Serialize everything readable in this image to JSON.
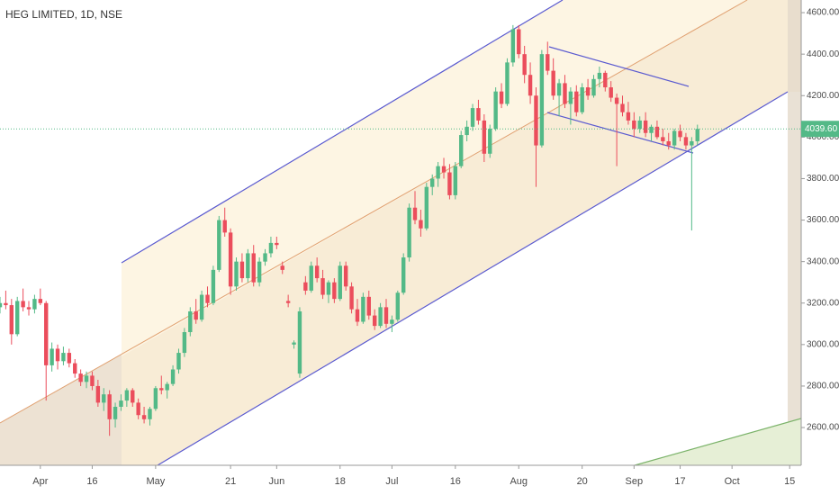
{
  "chart_data": {
    "type": "candlestick",
    "title": "HEG LIMITED, 1D, NSE",
    "open": [
      3180,
      3200,
      3190,
      3050,
      3210,
      3180,
      3170,
      3220,
      3200,
      2900,
      2980,
      2920,
      2960,
      2910,
      2860,
      2820,
      2850,
      2800,
      2720,
      2760,
      2640,
      2700,
      2730,
      2780,
      2720,
      2660,
      2640,
      2690,
      2790,
      2780,
      2810,
      2880,
      2960,
      3060,
      3160,
      3120,
      3240,
      3200,
      3360,
      3600,
      3540,
      3280,
      3400,
      3320,
      3440,
      3300,
      3400,
      3440,
      3490,
      3380,
      3210,
      3000,
      2860,
      3300,
      3260,
      3380,
      3320,
      3240,
      3300,
      3220,
      3380,
      3280,
      3170,
      3110,
      3230,
      3140,
      3090,
      3180,
      3100,
      3120,
      3250,
      3420,
      3660,
      3600,
      3560,
      3760,
      3800,
      3860,
      3830,
      3720,
      3860,
      4010,
      4050,
      4140,
      4080,
      3920,
      4040,
      4220,
      4160,
      4360,
      4520,
      4400,
      4300,
      4200,
      3960,
      4400,
      4320,
      4200,
      4260,
      4160,
      4220,
      4120,
      4240,
      4200,
      4280,
      4310,
      4240,
      4190,
      4160,
      4120,
      4080,
      4040,
      4080,
      4020,
      4050,
      4000,
      3980,
      3960,
      4030,
      4000,
      3960,
      3980
    ],
    "high": [
      3230,
      3260,
      3220,
      3230,
      3270,
      3210,
      3240,
      3270,
      3210,
      3010,
      3000,
      2990,
      2980,
      2930,
      2880,
      2870,
      2870,
      2830,
      2790,
      2780,
      2720,
      2760,
      2790,
      2790,
      2740,
      2700,
      2700,
      2800,
      2850,
      2820,
      2900,
      2980,
      3080,
      3180,
      3220,
      3260,
      3280,
      3380,
      3620,
      3660,
      3560,
      3420,
      3440,
      3460,
      3480,
      3420,
      3460,
      3520,
      3520,
      3400,
      3240,
      3020,
      3180,
      3330,
      3400,
      3420,
      3360,
      3310,
      3320,
      3400,
      3400,
      3300,
      3220,
      3250,
      3260,
      3170,
      3200,
      3220,
      3140,
      3260,
      3440,
      3680,
      3740,
      3650,
      3780,
      3820,
      3880,
      3900,
      3870,
      3880,
      4030,
      4080,
      4160,
      4180,
      4110,
      4060,
      4240,
      4260,
      4380,
      4540,
      4540,
      4440,
      4360,
      4240,
      4420,
      4460,
      4380,
      4280,
      4300,
      4240,
      4250,
      4260,
      4280,
      4300,
      4340,
      4320,
      4270,
      4210,
      4200,
      4170,
      4120,
      4100,
      4120,
      4060,
      4080,
      4040,
      4020,
      4040,
      4060,
      4020,
      4000,
      4060
    ],
    "low": [
      3150,
      3170,
      3000,
      3040,
      3160,
      3140,
      3150,
      3190,
      2730,
      2870,
      2880,
      2900,
      2890,
      2840,
      2800,
      2790,
      2780,
      2700,
      2680,
      2560,
      2600,
      2680,
      2700,
      2700,
      2640,
      2620,
      2610,
      2680,
      2760,
      2740,
      2800,
      2860,
      2940,
      3040,
      3100,
      3110,
      3180,
      3190,
      3350,
      3520,
      3240,
      3260,
      3300,
      3300,
      3280,
      3280,
      3380,
      3420,
      3460,
      3340,
      3180,
      2980,
      2840,
      3240,
      3250,
      3300,
      3220,
      3200,
      3200,
      3210,
      3260,
      3150,
      3090,
      3100,
      3120,
      3070,
      3080,
      3080,
      3060,
      3110,
      3240,
      3400,
      3580,
      3520,
      3550,
      3720,
      3760,
      3800,
      3700,
      3700,
      3850,
      3980,
      4030,
      4060,
      3880,
      3900,
      4030,
      4140,
      4150,
      4340,
      4380,
      4260,
      4160,
      3760,
      3950,
      4300,
      4180,
      4100,
      4140,
      4060,
      4100,
      4110,
      4180,
      4190,
      4240,
      4220,
      4170,
      3860,
      4100,
      4060,
      4000,
      4020,
      4000,
      3980,
      3990,
      3960,
      3940,
      3940,
      3980,
      3940,
      3550,
      3960
    ],
    "close": [
      3200,
      3190,
      3050,
      3210,
      3180,
      3170,
      3220,
      3200,
      2900,
      2980,
      2920,
      2960,
      2910,
      2860,
      2820,
      2850,
      2800,
      2720,
      2760,
      2640,
      2700,
      2730,
      2780,
      2720,
      2660,
      2640,
      2690,
      2790,
      2780,
      2810,
      2880,
      2960,
      3060,
      3160,
      3120,
      3240,
      3200,
      3360,
      3600,
      3540,
      3280,
      3400,
      3320,
      3440,
      3300,
      3400,
      3440,
      3490,
      3480,
      3360,
      3200,
      3010,
      3160,
      3260,
      3380,
      3320,
      3240,
      3300,
      3220,
      3380,
      3280,
      3170,
      3110,
      3230,
      3140,
      3090,
      3180,
      3100,
      3120,
      3250,
      3420,
      3660,
      3600,
      3560,
      3760,
      3800,
      3860,
      3830,
      3720,
      3860,
      4010,
      4050,
      4140,
      4080,
      3920,
      4040,
      4220,
      4160,
      4360,
      4520,
      4400,
      4300,
      4200,
      3960,
      4400,
      4320,
      4200,
      4260,
      4160,
      4220,
      4120,
      4240,
      4200,
      4280,
      4310,
      4240,
      4190,
      4160,
      4120,
      4080,
      4040,
      4080,
      4020,
      4050,
      4000,
      3980,
      3960,
      4030,
      4000,
      3960,
      3980,
      4039.6
    ],
    "up_color": "#53b987",
    "down_color": "#eb4d5c",
    "last_price": {
      "value": 4039.6,
      "label": "4039.60"
    },
    "xlim": [
      0,
      139
    ],
    "ylim": [
      2418,
      4661
    ],
    "xticks": [
      {
        "value": 7,
        "label": "Apr"
      },
      16,
      {
        "value": 27,
        "label": "May"
      },
      {
        "value": 40,
        "label": "21"
      },
      {
        "value": 48,
        "label": "Jun"
      },
      {
        "value": 59,
        "label": "18"
      },
      {
        "value": 68,
        "label": "Jul"
      },
      {
        "value": 79,
        "label": "16"
      },
      {
        "value": 90,
        "label": "Aug"
      },
      {
        "value": 101,
        "label": "20"
      },
      {
        "value": 110,
        "label": "Sep"
      },
      {
        "value": 118,
        "label": "17"
      },
      {
        "value": 127,
        "label": "Oct"
      },
      {
        "value": 137,
        "label": "15"
      }
    ],
    "yticks": [
      {
        "value": 2600,
        "label": "2600.00"
      },
      {
        "value": 2800,
        "label": "2800.00"
      },
      {
        "value": 3000,
        "label": "3000.00"
      },
      {
        "value": 3200,
        "label": "3200.00"
      },
      {
        "value": 3400,
        "label": "3400.00"
      },
      {
        "value": 3600,
        "label": "3600.00"
      },
      {
        "value": 3800,
        "label": "3800.00"
      },
      {
        "value": 4000,
        "label": "4000.00"
      },
      {
        "value": 4200,
        "label": "4200.00"
      },
      {
        "value": 4400,
        "label": "4400.00"
      },
      {
        "value": 4600,
        "label": "4600.00"
      }
    ]
  }
}
